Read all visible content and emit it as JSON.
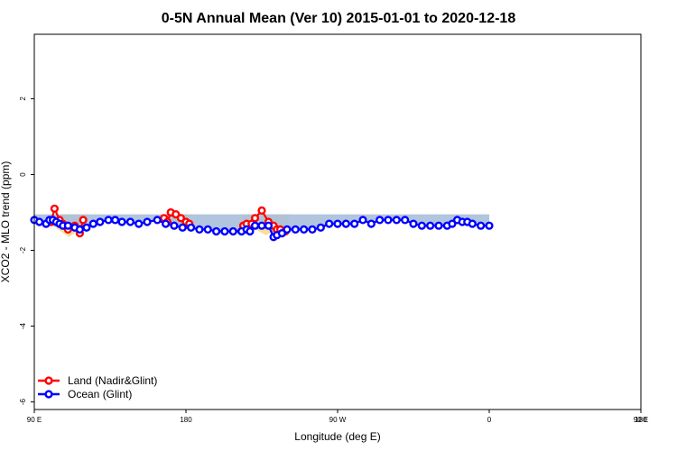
{
  "chart_data": {
    "type": "line",
    "title": "0-5N Annual Mean (Ver 10)   2015-01-01 to 2020-12-18",
    "xlabel": "Longitude (deg E)",
    "ylabel": "XCO2 - MLO trend (ppm)",
    "xlim": [
      90,
      450
    ],
    "ylim": [
      -6.2,
      3.7
    ],
    "x_ticks": [
      {
        "value": 90,
        "label": "90 E"
      },
      {
        "value": 180,
        "label": "180"
      },
      {
        "value": 270,
        "label": "90 W"
      },
      {
        "value": 360,
        "label": "0"
      },
      {
        "value": 450,
        "label": "90 E"
      },
      {
        "value": 540,
        "label": "180"
      }
    ],
    "y_ticks": [
      {
        "value": 2,
        "label": "2"
      },
      {
        "value": 0,
        "label": "0"
      },
      {
        "value": -2,
        "label": "-2"
      },
      {
        "value": -4,
        "label": "-4"
      },
      {
        "value": -6,
        "label": "-6"
      }
    ],
    "legend_position": "bottom-left",
    "series": [
      {
        "name": "Land (Nadir&Glint)",
        "color": "#ff0000",
        "x": [
          100,
          102,
          105,
          107,
          110,
          114,
          117,
          119,
          167,
          169,
          171,
          174,
          177,
          180,
          182,
          214,
          216,
          219,
          221,
          225,
          229,
          232,
          234,
          236,
          239
        ],
        "y": [
          -1.25,
          -0.9,
          -1.2,
          -1.3,
          -1.45,
          -1.35,
          -1.55,
          -1.2,
          -1.15,
          -1.25,
          -1.0,
          -1.05,
          -1.15,
          -1.25,
          -1.3,
          -1.35,
          -1.3,
          -1.3,
          -1.15,
          -0.95,
          -1.25,
          -1.35,
          -1.45,
          -1.45,
          -1.5
        ]
      },
      {
        "name": "Ocean (Glint)",
        "color": "#0000ff",
        "x": [
          90,
          93,
          97,
          99,
          101,
          103,
          105,
          107,
          110,
          114,
          117,
          121,
          125,
          129,
          134,
          138,
          142,
          147,
          152,
          157,
          163,
          168,
          173,
          178,
          183,
          188,
          193,
          198,
          203,
          208,
          213,
          216,
          218,
          221,
          225,
          229,
          232,
          234,
          237,
          240,
          245,
          250,
          255,
          260,
          265,
          270,
          275,
          280,
          285,
          290,
          295,
          300,
          305,
          310,
          315,
          320,
          325,
          330,
          335,
          338,
          341,
          344,
          347,
          350,
          355,
          360
        ],
        "y": [
          -1.2,
          -1.25,
          -1.3,
          -1.2,
          -1.2,
          -1.25,
          -1.3,
          -1.35,
          -1.35,
          -1.4,
          -1.45,
          -1.4,
          -1.3,
          -1.25,
          -1.2,
          -1.2,
          -1.25,
          -1.25,
          -1.3,
          -1.25,
          -1.2,
          -1.3,
          -1.35,
          -1.4,
          -1.4,
          -1.45,
          -1.45,
          -1.5,
          -1.5,
          -1.5,
          -1.5,
          -1.45,
          -1.5,
          -1.35,
          -1.35,
          -1.35,
          -1.65,
          -1.6,
          -1.55,
          -1.45,
          -1.45,
          -1.45,
          -1.45,
          -1.4,
          -1.3,
          -1.3,
          -1.3,
          -1.3,
          -1.2,
          -1.3,
          -1.2,
          -1.2,
          -1.2,
          -1.2,
          -1.3,
          -1.35,
          -1.35,
          -1.35,
          -1.35,
          -1.3,
          -1.2,
          -1.25,
          -1.25,
          -1.3,
          -1.35,
          -1.35
        ]
      }
    ]
  }
}
